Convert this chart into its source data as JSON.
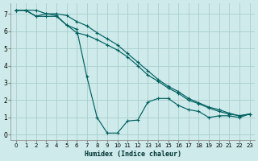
{
  "xlabel": "Humidex (Indice chaleur)",
  "bg_color": "#ceeaea",
  "grid_color": "#aacece",
  "line_color": "#006060",
  "xlim": [
    -0.5,
    23.5
  ],
  "ylim": [
    -0.3,
    7.6
  ],
  "line1_x": [
    0,
    1,
    2,
    3,
    4,
    5,
    6,
    7,
    8,
    9,
    10,
    11,
    12,
    13,
    14,
    15,
    16,
    17,
    18,
    19,
    20,
    21,
    22,
    23
  ],
  "line1_y": [
    7.2,
    7.2,
    6.85,
    7.0,
    6.9,
    6.35,
    6.1,
    3.35,
    1.0,
    0.1,
    0.1,
    0.8,
    0.85,
    1.9,
    2.1,
    2.1,
    1.7,
    1.45,
    1.35,
    1.0,
    1.1,
    1.1,
    1.0,
    1.2
  ],
  "line2_x": [
    0,
    1,
    2,
    3,
    4,
    5,
    6,
    7,
    8,
    9,
    10,
    11,
    12,
    13,
    14,
    15,
    16,
    17,
    18,
    19,
    20,
    21,
    22,
    23
  ],
  "line2_y": [
    7.2,
    7.2,
    6.85,
    6.85,
    6.85,
    6.35,
    5.9,
    5.75,
    5.5,
    5.2,
    4.9,
    4.5,
    4.0,
    3.45,
    3.1,
    2.7,
    2.4,
    2.0,
    1.8,
    1.55,
    1.35,
    1.2,
    1.1,
    1.2
  ],
  "line3_x": [
    0,
    1,
    2,
    3,
    4,
    5,
    6,
    7,
    8,
    9,
    10,
    11,
    12,
    13,
    14,
    15,
    16,
    17,
    18,
    19,
    20,
    21,
    22,
    23
  ],
  "line3_y": [
    7.2,
    7.2,
    7.2,
    7.0,
    7.0,
    6.9,
    6.55,
    6.3,
    5.9,
    5.55,
    5.2,
    4.7,
    4.2,
    3.7,
    3.2,
    2.8,
    2.5,
    2.1,
    1.85,
    1.6,
    1.45,
    1.25,
    1.1,
    1.2
  ]
}
